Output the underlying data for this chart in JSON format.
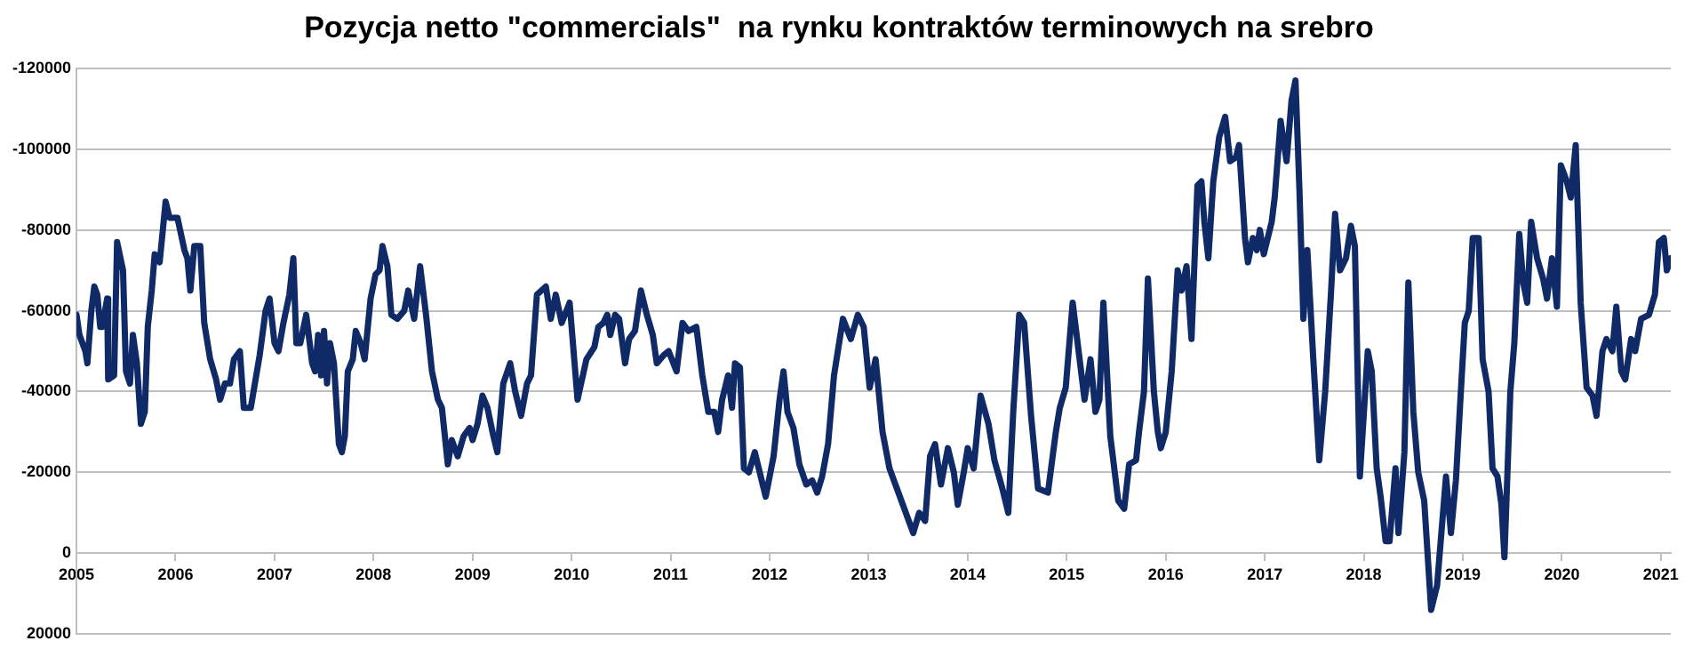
{
  "chart_data": {
    "type": "line",
    "title": "Pozycja netto \"commercials\"  na rynku kontraktów terminowych na srebro",
    "x": [
      2005.0,
      2005.03,
      2005.09,
      2005.11,
      2005.15,
      2005.18,
      2005.21,
      2005.24,
      2005.26,
      2005.31,
      2005.32,
      2005.38,
      2005.41,
      2005.47,
      2005.5,
      2005.54,
      2005.57,
      2005.61,
      2005.65,
      2005.69,
      2005.72,
      2005.76,
      2005.79,
      2005.84,
      2005.9,
      2005.94,
      2006.02,
      2006.09,
      2006.12,
      2006.15,
      2006.19,
      2006.25,
      2006.29,
      2006.35,
      2006.41,
      2006.45,
      2006.5,
      2006.55,
      2006.59,
      2006.65,
      2006.69,
      2006.76,
      2006.85,
      2006.91,
      2006.95,
      2007.0,
      2007.04,
      2007.09,
      2007.15,
      2007.19,
      2007.22,
      2007.26,
      2007.32,
      2007.38,
      2007.41,
      2007.44,
      2007.47,
      2007.5,
      2007.53,
      2007.56,
      2007.6,
      2007.65,
      2007.68,
      2007.71,
      2007.74,
      2007.79,
      2007.82,
      2007.87,
      2007.91,
      2007.97,
      2008.02,
      2008.06,
      2008.09,
      2008.14,
      2008.18,
      2008.24,
      2008.31,
      2008.35,
      2008.41,
      2008.47,
      2008.53,
      2008.59,
      2008.65,
      2008.69,
      2008.72,
      2008.75,
      2008.79,
      2008.85,
      2008.91,
      2008.97,
      2009.0,
      2009.05,
      2009.1,
      2009.15,
      2009.21,
      2009.25,
      2009.31,
      2009.38,
      2009.43,
      2009.49,
      2009.55,
      2009.59,
      2009.65,
      2009.74,
      2009.79,
      2009.84,
      2009.9,
      2009.98,
      2010.06,
      2010.15,
      2010.23,
      2010.27,
      2010.32,
      2010.36,
      2010.39,
      2010.44,
      2010.48,
      2010.54,
      2010.58,
      2010.64,
      2010.7,
      2010.76,
      2010.82,
      2010.86,
      2010.93,
      2010.98,
      2011.06,
      2011.12,
      2011.18,
      2011.26,
      2011.32,
      2011.38,
      2011.44,
      2011.48,
      2011.52,
      2011.58,
      2011.62,
      2011.65,
      2011.7,
      2011.74,
      2011.79,
      2011.85,
      2011.89,
      2011.96,
      2012.04,
      2012.1,
      2012.14,
      2012.18,
      2012.24,
      2012.3,
      2012.37,
      2012.43,
      2012.48,
      2012.53,
      2012.59,
      2012.65,
      2012.74,
      2012.82,
      2012.89,
      2012.95,
      2013.01,
      2013.07,
      2013.14,
      2013.21,
      2013.27,
      2013.36,
      2013.45,
      2013.51,
      2013.57,
      2013.62,
      2013.67,
      2013.73,
      2013.8,
      2013.86,
      2013.9,
      2013.96,
      2014.0,
      2014.06,
      2014.13,
      2014.21,
      2014.27,
      2014.35,
      2014.41,
      2014.46,
      2014.52,
      2014.57,
      2014.64,
      2014.71,
      2014.81,
      2014.89,
      2014.93,
      2014.99,
      2015.06,
      2015.14,
      2015.18,
      2015.24,
      2015.29,
      2015.33,
      2015.37,
      2015.44,
      2015.52,
      2015.58,
      2015.63,
      2015.7,
      2015.73,
      2015.78,
      2015.82,
      2015.88,
      2015.92,
      2015.95,
      2016.0,
      2016.06,
      2016.12,
      2016.16,
      2016.21,
      2016.26,
      2016.32,
      2016.36,
      2016.39,
      2016.43,
      2016.48,
      2016.54,
      2016.6,
      2016.65,
      2016.71,
      2016.74,
      2016.8,
      2016.83,
      2016.88,
      2016.92,
      2016.95,
      2016.99,
      2017.07,
      2017.1,
      2017.16,
      2017.22,
      2017.27,
      2017.31,
      2017.35,
      2017.39,
      2017.43,
      2017.49,
      2017.55,
      2017.61,
      2017.67,
      2017.71,
      2017.76,
      2017.82,
      2017.87,
      2017.91,
      2017.96,
      2018.04,
      2018.08,
      2018.13,
      2018.17,
      2018.22,
      2018.26,
      2018.32,
      2018.35,
      2018.41,
      2018.45,
      2018.5,
      2018.55,
      2018.61,
      2018.68,
      2018.74,
      2018.8,
      2018.83,
      2018.88,
      2018.93,
      2018.98,
      2019.02,
      2019.06,
      2019.1,
      2019.16,
      2019.2,
      2019.26,
      2019.3,
      2019.35,
      2019.39,
      2019.42,
      2019.48,
      2019.52,
      2019.57,
      2019.61,
      2019.65,
      2019.69,
      2019.75,
      2019.81,
      2019.85,
      2019.9,
      2019.95,
      2019.99,
      2020.05,
      2020.09,
      2020.14,
      2020.19,
      2020.25,
      2020.31,
      2020.35,
      2020.41,
      2020.45,
      2020.51,
      2020.55,
      2020.6,
      2020.64,
      2020.7,
      2020.74,
      2020.8,
      2020.88,
      2020.94,
      2020.98,
      2021.03,
      2021.06,
      2021.1
    ],
    "series": [
      {
        "color": "#0f2a66",
        "values": [
          -59000,
          -54000,
          -50000,
          -47000,
          -60000,
          -66000,
          -64000,
          -56000,
          -56000,
          -63000,
          -43000,
          -44000,
          -77000,
          -70000,
          -45000,
          -42000,
          -54000,
          -47000,
          -32000,
          -35000,
          -56000,
          -65000,
          -74000,
          -72000,
          -87000,
          -83000,
          -83000,
          -75000,
          -73000,
          -65000,
          -76000,
          -76000,
          -57000,
          -48000,
          -43000,
          -38000,
          -42000,
          -42000,
          -48000,
          -50000,
          -36000,
          -36000,
          -49000,
          -60000,
          -63000,
          -52000,
          -50000,
          -57000,
          -64000,
          -73000,
          -52000,
          -52000,
          -59000,
          -47000,
          -45000,
          -54000,
          -44000,
          -55000,
          -42000,
          -52000,
          -47000,
          -27000,
          -25000,
          -29000,
          -45000,
          -48000,
          -55000,
          -52000,
          -48000,
          -63000,
          -69000,
          -70000,
          -76000,
          -71000,
          -59000,
          -58000,
          -60000,
          -65000,
          -58000,
          -71000,
          -59000,
          -45000,
          -38000,
          -36000,
          -29000,
          -22000,
          -28000,
          -24000,
          -29000,
          -31000,
          -28000,
          -32000,
          -39000,
          -36000,
          -29000,
          -25000,
          -42000,
          -47000,
          -40000,
          -34000,
          -42000,
          -44000,
          -64000,
          -66000,
          -58000,
          -64000,
          -57000,
          -62000,
          -38000,
          -48000,
          -51000,
          -56000,
          -57000,
          -59000,
          -54000,
          -59000,
          -58000,
          -47000,
          -53000,
          -55000,
          -65000,
          -59000,
          -54000,
          -47000,
          -49000,
          -50000,
          -45000,
          -57000,
          -55000,
          -56000,
          -44000,
          -35000,
          -35000,
          -30000,
          -38000,
          -44000,
          -36000,
          -47000,
          -46000,
          -21000,
          -20000,
          -25000,
          -21000,
          -14000,
          -24000,
          -38000,
          -45000,
          -35000,
          -31000,
          -22000,
          -17000,
          -18000,
          -15000,
          -19000,
          -27000,
          -44000,
          -58000,
          -53000,
          -59000,
          -56000,
          -41000,
          -48000,
          -30000,
          -21000,
          -17000,
          -11000,
          -5000,
          -10000,
          -8000,
          -24000,
          -27000,
          -17000,
          -26000,
          -20000,
          -12000,
          -20000,
          -26000,
          -21000,
          -39000,
          -32000,
          -23000,
          -16000,
          -10000,
          -35000,
          -59000,
          -57000,
          -34000,
          -16000,
          -15000,
          -30000,
          -36000,
          -41000,
          -62000,
          -46000,
          -38000,
          -48000,
          -35000,
          -38000,
          -62000,
          -29000,
          -13000,
          -11000,
          -22000,
          -23000,
          -30000,
          -40000,
          -68000,
          -40000,
          -30000,
          -26000,
          -30000,
          -45000,
          -70000,
          -65000,
          -71000,
          -53000,
          -91000,
          -92000,
          -82000,
          -73000,
          -92000,
          -103000,
          -108000,
          -97000,
          -98000,
          -101000,
          -78000,
          -72000,
          -78000,
          -75000,
          -80000,
          -74000,
          -82000,
          -88000,
          -107000,
          -97000,
          -112000,
          -117000,
          -90000,
          -58000,
          -75000,
          -48000,
          -23000,
          -40000,
          -65000,
          -84000,
          -70000,
          -73000,
          -81000,
          -76000,
          -19000,
          -50000,
          -45000,
          -21000,
          -14000,
          -3000,
          -3000,
          -21000,
          -5000,
          -25000,
          -67000,
          -35000,
          -20000,
          -13000,
          14000,
          8000,
          -10000,
          -19000,
          -5000,
          -18000,
          -40000,
          -57000,
          -60000,
          -78000,
          -78000,
          -48000,
          -40000,
          -21000,
          -19000,
          -12000,
          1000,
          -40000,
          -52000,
          -79000,
          -67000,
          -62000,
          -82000,
          -73000,
          -68000,
          -63000,
          -73000,
          -61000,
          -96000,
          -92000,
          -88000,
          -101000,
          -62000,
          -41000,
          -39000,
          -34000,
          -50000,
          -53000,
          -50000,
          -61000,
          -45000,
          -43000,
          -53000,
          -50000,
          -58000,
          -59000,
          -64000,
          -77000,
          -78000,
          -70000,
          -73000
        ]
      }
    ],
    "xlim": [
      2005,
      2021.1
    ],
    "xticks": [
      2005,
      2006,
      2007,
      2008,
      2009,
      2010,
      2011,
      2012,
      2013,
      2014,
      2015,
      2016,
      2017,
      2018,
      2019,
      2020,
      2021
    ],
    "ylim": [
      20000,
      -120000
    ],
    "yticks": [
      -120000,
      -100000,
      -80000,
      -60000,
      -40000,
      -20000,
      0,
      20000
    ],
    "grid": "y",
    "legend": false,
    "marker": "none",
    "line_style": "solid"
  }
}
